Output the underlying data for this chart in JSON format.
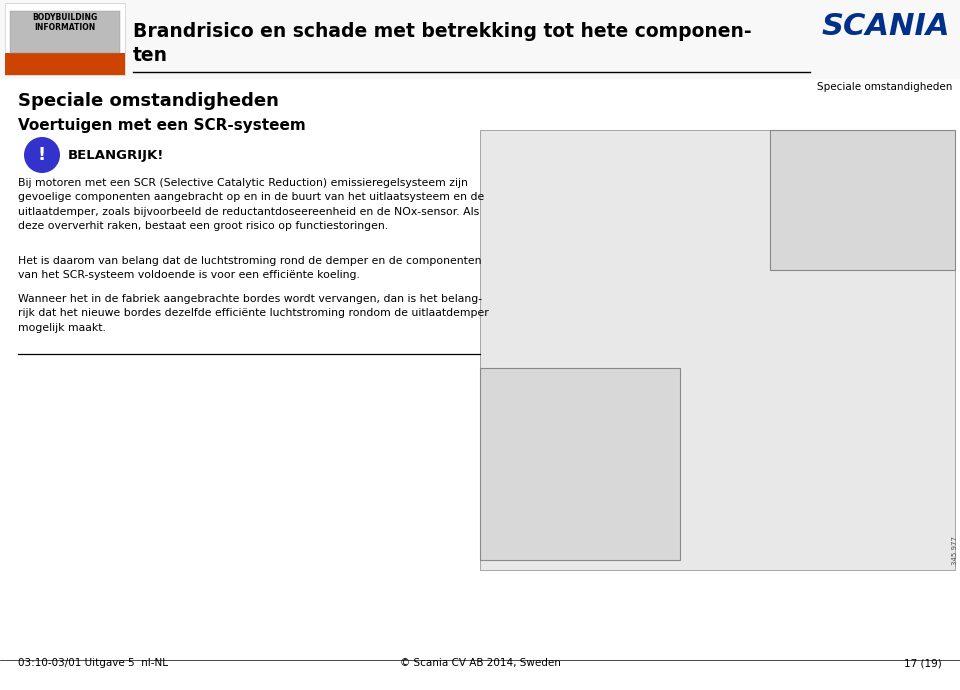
{
  "bg_color": "#ffffff",
  "header_bg": "#ffffff",
  "header_line_color": "#000000",
  "header_title_line1": "Brandrisico en schade met betrekking tot hete componen-",
  "header_title_line2": "ten",
  "header_title_color": "#000000",
  "header_title_fontsize": 13.5,
  "scania_text": "SCANIA",
  "scania_color": "#003087",
  "scania_fontsize": 22,
  "section_label": "Speciale omstandigheden",
  "section_label_color": "#000000",
  "section_label_fontsize": 7.5,
  "page_title": "Speciale omstandigheden",
  "page_title_fontsize": 13,
  "subtitle": "Voertuigen met een SCR-systeem",
  "subtitle_fontsize": 11,
  "important_bg": "#3333cc",
  "important_text_color": "#ffffff",
  "important_label": "BELANGRIJK!",
  "important_label_fontsize": 9.5,
  "body_text_1": "Bij motoren met een SCR (Selective Catalytic Reduction) emissieregelsysteem zijn\ngevoelige componenten aangebracht op en in de buurt van het uitlaatsysteem en de\nuitlaatdemper, zoals bijvoorbeeld de reductantdoseereenheid en de NOx-sensor. Als\ndeze oververhit raken, bestaat een groot risico op functiestoringen.",
  "body_text_2": "Het is daarom van belang dat de luchtstroming rond de demper en de componenten\nvan het SCR-systeem voldoende is voor een efficiënte koeling.",
  "body_text_3": "Wanneer het in de fabriek aangebrachte bordes wordt vervangen, dan is het belang-\nrijk dat het nieuwe bordes dezelfde efficiënte luchtstroming rondom de uitlaatdemper\nmogelijk maakt.",
  "body_fontsize": 7.8,
  "body_text_color": "#000000",
  "footer_left": "03:10-03/01 Uitgave 5  nl-NL",
  "footer_center": "© Scania CV AB 2014, Sweden",
  "footer_right": "17 (19)",
  "footer_fontsize": 7.5,
  "separator_color": "#000000",
  "header_icon_bg": "#f5f5f5",
  "header_icon_truck_gray": "#cccccc",
  "header_icon_truck_orange": "#cc4400",
  "img_border_color": "#888888",
  "img_fill": "#e8e8e8",
  "img_inset_fill": "#d8d8d8",
  "img_number": "345 977"
}
